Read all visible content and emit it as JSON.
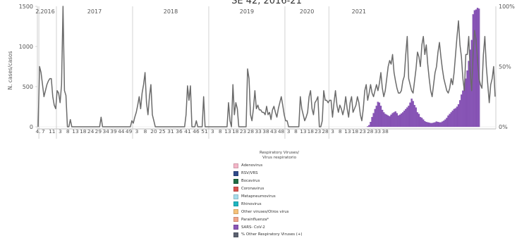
{
  "chart_data": {
    "type": "bar",
    "title": "SE 42, 2016-21",
    "ylabel": "N. cases/casos",
    "y_left_ticks": [
      0,
      500,
      1000,
      1500
    ],
    "ylim_left": [
      0,
      1500
    ],
    "y_right_ticks": [
      "0%",
      "50%",
      "100%"
    ],
    "ylim_right_percent": [
      0,
      100
    ],
    "years": [
      {
        "label": "2.",
        "weeks": 1
      },
      {
        "label": "2016",
        "weeks": 12
      },
      {
        "label": "2017",
        "weeks": 52
      },
      {
        "label": "2018",
        "weeks": 52
      },
      {
        "label": "2019",
        "weeks": 52
      },
      {
        "label": "2020",
        "weeks": 30
      },
      {
        "label": "2021",
        "weeks": 41
      }
    ],
    "week_tick_labels": [
      {
        "year": 0,
        "labels": [
          "4."
        ]
      },
      {
        "year": 1,
        "labels": [
          "7",
          "11"
        ]
      },
      {
        "year": 2,
        "labels": [
          "3",
          "8",
          "13",
          "18",
          "24",
          "29",
          "34",
          "39",
          "44",
          "49"
        ]
      },
      {
        "year": 3,
        "labels": [
          "3",
          "8",
          "20",
          "25",
          "31",
          "36",
          "41",
          "46",
          "51"
        ]
      },
      {
        "year": 4,
        "labels": [
          "3",
          "8",
          "13",
          "18",
          "23",
          "28",
          "33",
          "38",
          "43",
          "48"
        ]
      },
      {
        "year": 5,
        "labels": [
          "3",
          "8",
          "13",
          "18",
          "23",
          "28"
        ]
      },
      {
        "year": 6,
        "labels": [
          "3",
          "8",
          "13",
          "18",
          "23",
          "28",
          "33",
          "38"
        ]
      }
    ],
    "series": [
      {
        "name": "SARS- CoV-2",
        "kind": "bar",
        "axis": "left",
        "color": "#8a56b8",
        "values": [
          0,
          0,
          0,
          0,
          0,
          0,
          0,
          0,
          0,
          0,
          0,
          0,
          0,
          0,
          0,
          0,
          0,
          0,
          0,
          0,
          0,
          0,
          0,
          0,
          0,
          0,
          0,
          0,
          0,
          0,
          0,
          0,
          0,
          0,
          0,
          0,
          0,
          0,
          0,
          0,
          0,
          0,
          0,
          0,
          0,
          0,
          0,
          0,
          0,
          0,
          0,
          0,
          0,
          0,
          0,
          0,
          0,
          0,
          0,
          0,
          0,
          0,
          0,
          0,
          0,
          0,
          0,
          0,
          0,
          0,
          0,
          0,
          0,
          0,
          0,
          0,
          0,
          0,
          0,
          0,
          0,
          0,
          0,
          0,
          0,
          0,
          0,
          0,
          0,
          0,
          0,
          0,
          0,
          0,
          0,
          0,
          0,
          0,
          0,
          0,
          0,
          0,
          0,
          0,
          0,
          0,
          0,
          0,
          0,
          0,
          0,
          0,
          0,
          0,
          0,
          0,
          0,
          0,
          0,
          0,
          0,
          0,
          0,
          0,
          0,
          0,
          0,
          0,
          0,
          0,
          0,
          0,
          0,
          0,
          0,
          0,
          0,
          0,
          0,
          0,
          0,
          0,
          0,
          0,
          0,
          0,
          0,
          0,
          0,
          0,
          0,
          0,
          0,
          0,
          0,
          0,
          0,
          0,
          0,
          0,
          0,
          0,
          0,
          0,
          0,
          0,
          0,
          0,
          0,
          0,
          0,
          0,
          0,
          0,
          0,
          0,
          0,
          0,
          0,
          0,
          0,
          0,
          0,
          0,
          0,
          0,
          0,
          0,
          0,
          0,
          0,
          0,
          0,
          0,
          0,
          0,
          0,
          0,
          0,
          0,
          0,
          0,
          0,
          0,
          0,
          0,
          0,
          0,
          0,
          0,
          0,
          0,
          0,
          0,
          0,
          0,
          0,
          0,
          0,
          0,
          0,
          0,
          0,
          0,
          0,
          5,
          20,
          60,
          120,
          170,
          220,
          260,
          310,
          300,
          260,
          210,
          180,
          160,
          150,
          140,
          130,
          150,
          170,
          180,
          190,
          170,
          140,
          150,
          165,
          180,
          200,
          220,
          240,
          260,
          300,
          350,
          320,
          270,
          240,
          180,
          160,
          120,
          110,
          90,
          70,
          60,
          55,
          50,
          45,
          45,
          50,
          55,
          65,
          60,
          55,
          55,
          65,
          75,
          90,
          110,
          140,
          160,
          180,
          200,
          220,
          230,
          250,
          280,
          330,
          400,
          450,
          520,
          600,
          700,
          820,
          960,
          1080,
          1400,
          1450,
          1460,
          1480,
          1470
        ]
      },
      {
        "name": "% Other Respiratory Viruses (+)",
        "kind": "line",
        "axis": "right",
        "color": "#6b6b6b",
        "values": [
          0,
          50,
          45,
          35,
          25,
          30,
          35,
          38,
          40,
          40,
          25,
          18,
          15,
          30,
          28,
          20,
          35,
          100,
          30,
          26,
          0,
          0,
          6,
          0,
          0,
          0,
          0,
          0,
          0,
          0,
          0,
          0,
          0,
          0,
          0,
          0,
          0,
          0,
          0,
          0,
          0,
          0,
          0,
          8,
          0,
          0,
          0,
          0,
          0,
          0,
          0,
          0,
          0,
          0,
          0,
          0,
          0,
          0,
          0,
          0,
          0,
          0,
          0,
          0,
          5,
          3,
          8,
          12,
          18,
          25,
          15,
          28,
          35,
          45,
          20,
          10,
          25,
          35,
          10,
          5,
          0,
          0,
          0,
          0,
          0,
          0,
          0,
          0,
          0,
          0,
          0,
          0,
          0,
          0,
          0,
          0,
          0,
          0,
          0,
          0,
          0,
          10,
          34,
          22,
          34,
          0,
          0,
          0,
          5,
          0,
          0,
          0,
          0,
          25,
          0,
          0,
          0,
          0,
          0,
          0,
          0,
          0,
          0,
          0,
          0,
          0,
          0,
          0,
          0,
          0,
          20,
          5,
          0,
          35,
          10,
          20,
          15,
          0,
          0,
          0,
          0,
          0,
          0,
          48,
          40,
          10,
          5,
          15,
          30,
          15,
          18,
          14,
          14,
          12,
          12,
          10,
          17,
          10,
          12,
          6,
          14,
          17,
          12,
          8,
          15,
          20,
          25,
          18,
          10,
          5,
          5,
          0,
          0,
          0,
          0,
          0,
          0,
          0,
          0,
          25,
          15,
          10,
          5,
          8,
          12,
          25,
          30,
          15,
          10,
          20,
          22,
          25,
          0,
          0,
          5,
          30,
          22,
          22,
          20,
          22,
          22,
          8,
          20,
          30,
          18,
          12,
          18,
          15,
          10,
          15,
          25,
          15,
          8,
          20,
          25,
          12,
          15,
          18,
          25,
          20,
          10,
          5,
          15,
          30,
          35,
          22,
          28,
          35,
          28,
          25,
          30,
          35,
          30,
          36,
          45,
          32,
          25,
          30,
          40,
          50,
          55,
          52,
          60,
          45,
          38,
          32,
          28,
          28,
          30,
          38,
          42,
          60,
          75,
          40,
          35,
          30,
          28,
          38,
          48,
          62,
          58,
          50,
          68,
          75,
          60,
          68,
          52,
          40,
          30,
          25,
          35,
          45,
          50,
          62,
          70,
          58,
          48,
          40,
          35,
          30,
          28,
          32,
          40,
          35,
          45,
          60,
          75,
          88,
          68,
          58,
          40,
          30,
          60,
          60,
          75,
          45,
          30,
          62,
          80,
          72,
          55,
          40,
          35,
          32,
          60,
          75,
          50,
          35,
          20,
          35,
          40,
          50,
          25
        ]
      }
    ],
    "legend": {
      "title_line1": "Respiratory Viruses/",
      "title_line2": "Virus respiratorio",
      "items": [
        {
          "label": "Adenovirus",
          "color": "#f4b6c8"
        },
        {
          "label": "RSV/VRS",
          "color": "#2f4a8a"
        },
        {
          "label": "Bocavirus",
          "color": "#1f6b44"
        },
        {
          "label": "Coronavirus",
          "color": "#d9534f"
        },
        {
          "label": "Metapneumovirus",
          "color": "#a6dcec"
        },
        {
          "label": "Rhinovirus",
          "color": "#1fb5c0"
        },
        {
          "label": "Other viruses/Otros virus",
          "color": "#f6c27a"
        },
        {
          "label": "Parainfluenza*",
          "color": "#f1a58a"
        },
        {
          "label": "SARS- CoV-2",
          "color": "#8a56b8"
        },
        {
          "label": "% Other Respiratory Viruses (+)",
          "color": "#5b6170"
        }
      ]
    }
  }
}
